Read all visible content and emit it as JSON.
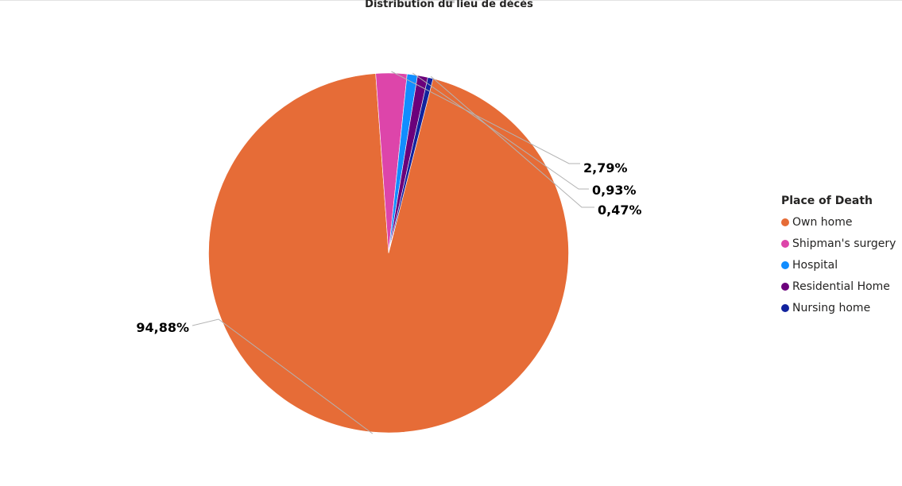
{
  "chart_data": {
    "type": "pie",
    "title": "Distribution du lieu de décés",
    "legend_title": "Place of Death",
    "legend_position": "right",
    "slices": [
      {
        "label": "Own home",
        "value": 94.88,
        "display": "94,88%",
        "color": "#E66C37"
      },
      {
        "label": "Shipman's surgery",
        "value": 2.79,
        "display": "2,79%",
        "color": "#DD45AA"
      },
      {
        "label": "Hospital",
        "value": 0.93,
        "display": "0,93%",
        "color": "#118DFF"
      },
      {
        "label": "Residential Home",
        "value": 0.93,
        "display": "",
        "color": "#6B007B"
      },
      {
        "label": "Nursing home",
        "value": 0.47,
        "display": "0,47%",
        "color": "#12239E"
      }
    ]
  }
}
